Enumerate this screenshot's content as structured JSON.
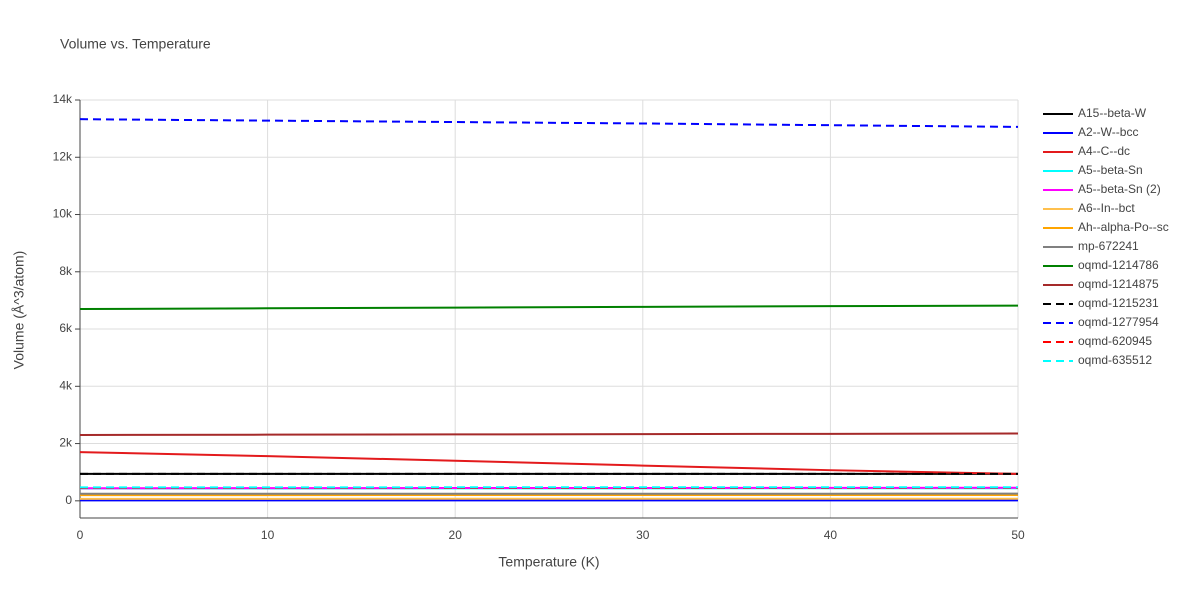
{
  "chart_data": {
    "type": "line",
    "title": "Volume vs. Temperature",
    "x_label": "Temperature (K)",
    "y_label": "Volume (Å^3/atom)",
    "x": [
      0,
      10,
      20,
      30,
      40,
      50
    ],
    "xlim": [
      0,
      50
    ],
    "xticks": [
      0,
      10,
      20,
      30,
      40,
      50
    ],
    "ylim": [
      -600,
      14000
    ],
    "yticks": [
      0,
      {
        "value": 2000,
        "label": "2k"
      },
      {
        "value": 4000,
        "label": "4k"
      },
      {
        "value": 6000,
        "label": "6k"
      },
      {
        "value": 8000,
        "label": "8k"
      },
      {
        "value": 10000,
        "label": "10k"
      },
      {
        "value": 12000,
        "label": "12k"
      },
      {
        "value": 14000,
        "label": "14k"
      }
    ],
    "grid": true,
    "series": [
      {
        "name": "A15--beta-W",
        "color": "#000000",
        "dash": "solid",
        "values": [
          940,
          940,
          940,
          940,
          940,
          940
        ]
      },
      {
        "name": "A2--W--bcc",
        "color": "#0000ff",
        "dash": "solid",
        "values": [
          16,
          16,
          16,
          16,
          16,
          16
        ]
      },
      {
        "name": "A4--C--dc",
        "color": "#e31a1c",
        "dash": "solid",
        "values": [
          1700,
          1560,
          1400,
          1230,
          1070,
          940
        ]
      },
      {
        "name": "A5--beta-Sn",
        "color": "#00ffff",
        "dash": "solid",
        "values": [
          430,
          432,
          434,
          436,
          438,
          440
        ]
      },
      {
        "name": "A5--beta-Sn (2)",
        "color": "#ff00ff",
        "dash": "solid",
        "values": [
          440,
          443,
          446,
          449,
          452,
          455
        ]
      },
      {
        "name": "A6--In--bct",
        "color": "#ffc04d",
        "dash": "solid",
        "values": [
          70,
          70,
          71,
          71,
          72,
          72
        ]
      },
      {
        "name": "Ah--alpha-Po--sc",
        "color": "#ffa500",
        "dash": "solid",
        "values": [
          200,
          201,
          202,
          203,
          204,
          205
        ]
      },
      {
        "name": "mp-672241",
        "color": "#808080",
        "dash": "solid",
        "values": [
          245,
          246,
          247,
          248,
          249,
          250
        ]
      },
      {
        "name": "oqmd-1214786",
        "color": "#008000",
        "dash": "solid",
        "values": [
          6700,
          6725,
          6750,
          6775,
          6800,
          6820
        ]
      },
      {
        "name": "oqmd-1214875",
        "color": "#a52a2a",
        "dash": "solid",
        "values": [
          2300,
          2310,
          2320,
          2330,
          2340,
          2350
        ]
      },
      {
        "name": "oqmd-1215231",
        "color": "#000000",
        "dash": "dash",
        "values": [
          940,
          940,
          940,
          940,
          940,
          940
        ]
      },
      {
        "name": "oqmd-1277954",
        "color": "#0000ff",
        "dash": "dash",
        "values": [
          13330,
          13280,
          13230,
          13180,
          13120,
          13060
        ]
      },
      {
        "name": "oqmd-620945",
        "color": "#ff0000",
        "dash": "dash",
        "values": [
          450,
          451,
          452,
          453,
          454,
          455
        ]
      },
      {
        "name": "oqmd-635512",
        "color": "#00ffff",
        "dash": "dash",
        "values": [
          470,
          471,
          472,
          473,
          474,
          475
        ]
      }
    ]
  }
}
